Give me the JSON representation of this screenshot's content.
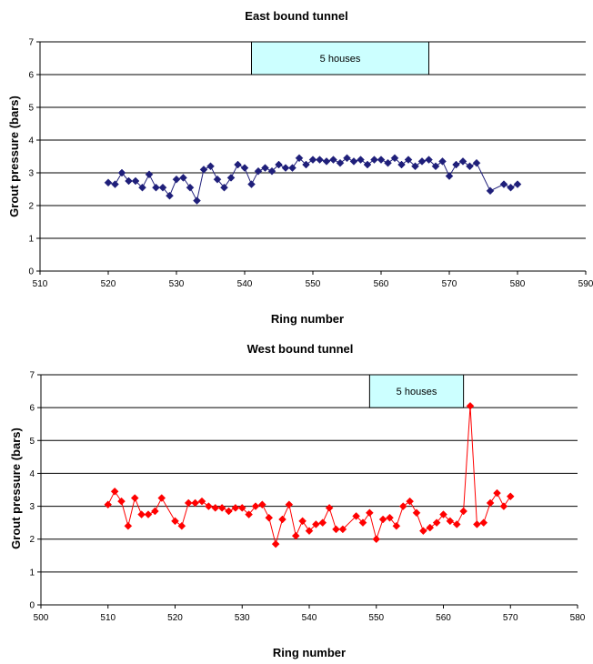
{
  "chart_data": [
    {
      "type": "line",
      "title": "East bound tunnel",
      "xlabel": "Ring number",
      "ylabel": "Grout pressure (bars)",
      "xlim": [
        510,
        590
      ],
      "ylim": [
        0,
        7
      ],
      "xticks": [
        510,
        520,
        530,
        540,
        550,
        560,
        570,
        580,
        590
      ],
      "yticks": [
        0,
        1,
        2,
        3,
        4,
        5,
        6,
        7
      ],
      "grid": "horizontal",
      "color": "#1f1f7a",
      "marker": "diamond",
      "annotation": {
        "text": "5 houses",
        "x_start": 541,
        "x_end": 567,
        "y_start": 6,
        "y_end": 7,
        "fill": "#ccffff"
      },
      "series": [
        {
          "x": [
            520,
            521,
            522,
            523,
            524,
            525,
            526,
            527,
            528,
            529,
            530,
            531,
            532,
            533,
            534,
            535,
            536,
            537,
            538,
            539,
            540,
            541,
            542,
            543,
            544,
            545,
            546,
            547,
            548,
            549,
            550,
            551,
            552,
            553,
            554,
            555,
            556,
            557,
            558,
            559,
            560,
            561,
            562,
            563,
            564,
            565,
            566,
            567,
            568,
            569,
            570,
            571,
            572,
            573,
            574,
            576,
            578,
            579,
            580
          ],
          "y": [
            2.7,
            2.65,
            3.0,
            2.75,
            2.75,
            2.55,
            2.95,
            2.55,
            2.55,
            2.3,
            2.8,
            2.85,
            2.55,
            2.15,
            3.1,
            3.2,
            2.8,
            2.55,
            2.85,
            3.25,
            3.15,
            2.65,
            3.05,
            3.15,
            3.05,
            3.25,
            3.15,
            3.15,
            3.45,
            3.25,
            3.4,
            3.4,
            3.35,
            3.4,
            3.3,
            3.45,
            3.35,
            3.4,
            3.25,
            3.4,
            3.4,
            3.3,
            3.45,
            3.25,
            3.4,
            3.2,
            3.35,
            3.4,
            3.2,
            3.35,
            2.9,
            3.25,
            3.35,
            3.2,
            3.3,
            2.45,
            2.65,
            2.55,
            2.65
          ]
        }
      ]
    },
    {
      "type": "line",
      "title": "West bound tunnel",
      "xlabel": "Ring number",
      "ylabel": "Grout pressure (bars)",
      "xlim": [
        500,
        580
      ],
      "ylim": [
        0,
        7
      ],
      "xticks": [
        500,
        510,
        520,
        530,
        540,
        550,
        560,
        570,
        580
      ],
      "yticks": [
        0,
        1,
        2,
        3,
        4,
        5,
        6,
        7
      ],
      "grid": "horizontal",
      "color": "#ff0000",
      "marker": "diamond",
      "annotation": {
        "text": "5 houses",
        "x_start": 549,
        "x_end": 563,
        "y_start": 6,
        "y_end": 7,
        "fill": "#ccffff"
      },
      "series": [
        {
          "x": [
            510,
            511,
            512,
            513,
            514,
            515,
            516,
            517,
            518,
            520,
            521,
            522,
            523,
            524,
            525,
            526,
            527,
            528,
            529,
            530,
            531,
            532,
            533,
            534,
            535,
            536,
            537,
            538,
            539,
            540,
            541,
            542,
            543,
            544,
            545,
            547,
            548,
            549,
            550,
            551,
            552,
            553,
            554,
            555,
            556,
            557,
            558,
            559,
            560,
            561,
            562,
            563,
            564,
            565,
            566,
            567,
            568,
            569,
            570
          ],
          "y": [
            3.05,
            3.45,
            3.15,
            2.4,
            3.25,
            2.75,
            2.75,
            2.85,
            3.25,
            2.55,
            2.4,
            3.1,
            3.1,
            3.15,
            3.0,
            2.95,
            2.95,
            2.85,
            2.95,
            2.95,
            2.75,
            3.0,
            3.05,
            2.65,
            1.85,
            2.6,
            3.05,
            2.1,
            2.55,
            2.25,
            2.45,
            2.5,
            2.95,
            2.3,
            2.3,
            2.7,
            2.5,
            2.8,
            2.0,
            2.6,
            2.65,
            2.4,
            3.0,
            3.15,
            2.8,
            2.25,
            2.35,
            2.5,
            2.75,
            2.55,
            2.45,
            2.85,
            6.05,
            2.45,
            2.5,
            3.1,
            3.4,
            3.0,
            3.3
          ]
        }
      ]
    }
  ]
}
